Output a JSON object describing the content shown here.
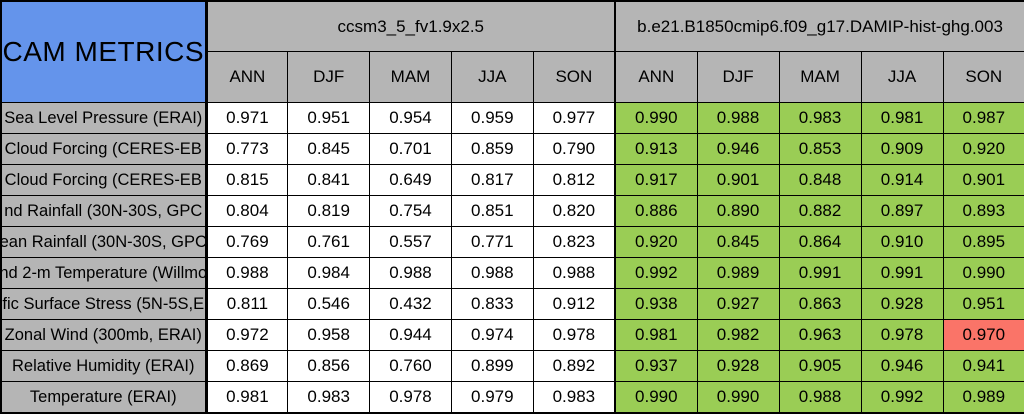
{
  "title": "CAM METRICS",
  "groups": [
    {
      "name": "ccsm3_5_fv1.9x2.5",
      "seasons": [
        "ANN",
        "DJF",
        "MAM",
        "JJA",
        "SON"
      ]
    },
    {
      "name": "b.e21.B1850cmip6.f09_g17.DAMIP-hist-ghg.003",
      "seasons": [
        "ANN",
        "DJF",
        "MAM",
        "JJA",
        "SON"
      ]
    }
  ],
  "rows": [
    {
      "label": "Sea Level Pressure (ERAI)",
      "model1": [
        "0.971",
        "0.951",
        "0.954",
        "0.959",
        "0.977"
      ],
      "model2": [
        "0.990",
        "0.988",
        "0.983",
        "0.981",
        "0.987"
      ],
      "model2_red": []
    },
    {
      "label": "Cloud Forcing (CERES-EB",
      "model1": [
        "0.773",
        "0.845",
        "0.701",
        "0.859",
        "0.790"
      ],
      "model2": [
        "0.913",
        "0.946",
        "0.853",
        "0.909",
        "0.920"
      ],
      "model2_red": []
    },
    {
      "label": "Cloud Forcing (CERES-EB",
      "model1": [
        "0.815",
        "0.841",
        "0.649",
        "0.817",
        "0.812"
      ],
      "model2": [
        "0.917",
        "0.901",
        "0.848",
        "0.914",
        "0.901"
      ],
      "model2_red": []
    },
    {
      "label": "nd Rainfall (30N-30S, GPC",
      "model1": [
        "0.804",
        "0.819",
        "0.754",
        "0.851",
        "0.820"
      ],
      "model2": [
        "0.886",
        "0.890",
        "0.882",
        "0.897",
        "0.893"
      ],
      "model2_red": []
    },
    {
      "label": "ean Rainfall (30N-30S, GPC",
      "model1": [
        "0.769",
        "0.761",
        "0.557",
        "0.771",
        "0.823"
      ],
      "model2": [
        "0.920",
        "0.845",
        "0.864",
        "0.910",
        "0.895"
      ],
      "model2_red": []
    },
    {
      "label": "nd 2-m Temperature (Willmo",
      "model1": [
        "0.988",
        "0.984",
        "0.988",
        "0.988",
        "0.988"
      ],
      "model2": [
        "0.992",
        "0.989",
        "0.991",
        "0.991",
        "0.990"
      ],
      "model2_red": []
    },
    {
      "label": "fic Surface Stress (5N-5S,E",
      "model1": [
        "0.811",
        "0.546",
        "0.432",
        "0.833",
        "0.912"
      ],
      "model2": [
        "0.938",
        "0.927",
        "0.863",
        "0.928",
        "0.951"
      ],
      "model2_red": []
    },
    {
      "label": "Zonal Wind (300mb, ERAI)",
      "model1": [
        "0.972",
        "0.958",
        "0.944",
        "0.974",
        "0.978"
      ],
      "model2": [
        "0.981",
        "0.982",
        "0.963",
        "0.978",
        "0.970"
      ],
      "model2_red": [
        4
      ]
    },
    {
      "label": "Relative Humidity (ERAI)",
      "model1": [
        "0.869",
        "0.856",
        "0.760",
        "0.899",
        "0.892"
      ],
      "model2": [
        "0.937",
        "0.928",
        "0.905",
        "0.946",
        "0.941"
      ],
      "model2_red": []
    },
    {
      "label": "Temperature (ERAI)",
      "model1": [
        "0.981",
        "0.983",
        "0.978",
        "0.979",
        "0.983"
      ],
      "model2": [
        "0.990",
        "0.990",
        "0.988",
        "0.992",
        "0.989"
      ],
      "model2_red": []
    }
  ],
  "colors": {
    "title_blue": "#6494EB",
    "header_gray": "#B5B5B5",
    "good_green": "#9ACD55",
    "bad_red": "#FA7468",
    "cell_white": "#FFFFFF",
    "border_black": "#000000"
  }
}
